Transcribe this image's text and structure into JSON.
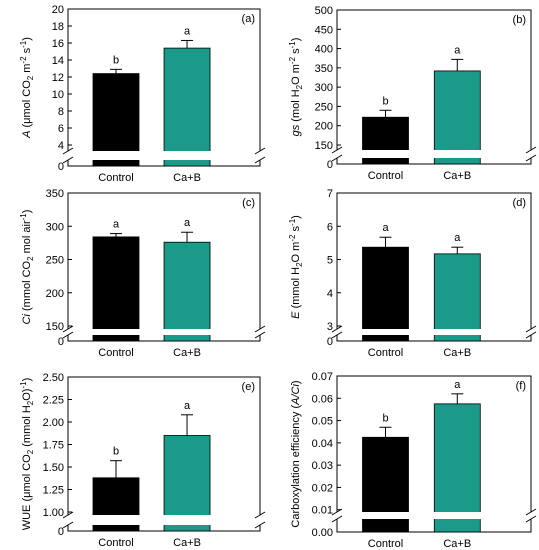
{
  "colors": {
    "control": "#000000",
    "treatment": "#1a9a89",
    "break": "#ffffff"
  },
  "chart_data": [
    {
      "type": "bar",
      "panel_label": "(a)",
      "categories": [
        "Control",
        "Ca+B"
      ],
      "values": [
        12.4,
        15.4
      ],
      "errors": [
        0.5,
        0.9
      ],
      "letters": [
        "b",
        "a"
      ],
      "ylabel_parts": [
        {
          "t": "A",
          "italic": true
        },
        {
          "t": " (μmol CO"
        },
        {
          "t": "2",
          "sub": true
        },
        {
          "t": " m"
        },
        {
          "t": "-2",
          "sup": true
        },
        {
          "t": " s"
        },
        {
          "t": "-1",
          "sup": true
        },
        {
          "t": ")"
        }
      ],
      "ylim_upper": [
        4,
        20
      ],
      "ticks_upper": [
        "4",
        "6",
        "8",
        "10",
        "12",
        "14",
        "16",
        "18",
        "20"
      ],
      "tick_values_upper": [
        4,
        6,
        8,
        10,
        12,
        14,
        16,
        18,
        20
      ],
      "tick_lower": "0",
      "axis_break": true
    },
    {
      "type": "bar",
      "panel_label": "(b)",
      "categories": [
        "Control",
        "Ca+B"
      ],
      "values": [
        222,
        342
      ],
      "errors": [
        18,
        30
      ],
      "letters": [
        "b",
        "a"
      ],
      "ylabel_parts": [
        {
          "t": "gs",
          "italic": true
        },
        {
          "t": " (mol H"
        },
        {
          "t": "2",
          "sub": true
        },
        {
          "t": "O m"
        },
        {
          "t": "-2",
          "sup": true
        },
        {
          "t": " s"
        },
        {
          "t": "-1",
          "sup": true
        },
        {
          "t": ")"
        }
      ],
      "ylim_upper": [
        150,
        500
      ],
      "ticks_upper": [
        "150",
        "200",
        "250",
        "300",
        "350",
        "400",
        "450",
        "500"
      ],
      "tick_values_upper": [
        150,
        200,
        250,
        300,
        350,
        400,
        450,
        500
      ],
      "tick_lower": "0",
      "axis_break": true
    },
    {
      "type": "bar",
      "panel_label": "(c)",
      "categories": [
        "Control",
        "Ca+B"
      ],
      "values": [
        284,
        276
      ],
      "errors": [
        5,
        15
      ],
      "letters": [
        "a",
        "a"
      ],
      "ylabel_parts": [
        {
          "t": "Ci",
          "italic": true
        },
        {
          "t": " (mmol CO"
        },
        {
          "t": "2",
          "sub": true
        },
        {
          "t": " mol air"
        },
        {
          "t": "-1",
          "sup": true
        },
        {
          "t": ")"
        }
      ],
      "ylim_upper": [
        150,
        350
      ],
      "ticks_upper": [
        "150",
        "200",
        "250",
        "300",
        "350"
      ],
      "tick_values_upper": [
        150,
        200,
        250,
        300,
        350
      ],
      "tick_lower": "0",
      "axis_break": true
    },
    {
      "type": "bar",
      "panel_label": "(d)",
      "categories": [
        "Control",
        "Ca+B"
      ],
      "values": [
        5.37,
        5.17
      ],
      "errors": [
        0.3,
        0.2
      ],
      "letters": [
        "a",
        "a"
      ],
      "ylabel_parts": [
        {
          "t": "E",
          "italic": true
        },
        {
          "t": " (mmol H"
        },
        {
          "t": "2",
          "sub": true
        },
        {
          "t": "O m"
        },
        {
          "t": "-2",
          "sup": true
        },
        {
          "t": " s"
        },
        {
          "t": "-1",
          "sup": true
        },
        {
          "t": ")"
        }
      ],
      "ylim_upper": [
        3,
        7
      ],
      "ticks_upper": [
        "3",
        "4",
        "5",
        "6",
        "7"
      ],
      "tick_values_upper": [
        3,
        4,
        5,
        6,
        7
      ],
      "tick_lower": "0",
      "axis_break": true
    },
    {
      "type": "bar",
      "panel_label": "(e)",
      "categories": [
        "Control",
        "Ca+B"
      ],
      "values": [
        1.38,
        1.85
      ],
      "errors": [
        0.19,
        0.23
      ],
      "letters": [
        "b",
        "a"
      ],
      "ylabel_parts": [
        {
          "t": "WUE (μmol CO"
        },
        {
          "t": "2",
          "sub": true
        },
        {
          "t": " (mmol H"
        },
        {
          "t": "2",
          "sub": true
        },
        {
          "t": "O)"
        },
        {
          "t": "-1",
          "sup": true
        },
        {
          "t": ")"
        }
      ],
      "ylim_upper": [
        1.0,
        2.5
      ],
      "ticks_upper": [
        "1.00",
        "1.25",
        "1.50",
        "1.75",
        "2.00",
        "2.25",
        "2.50"
      ],
      "tick_values_upper": [
        1.0,
        1.25,
        1.5,
        1.75,
        2.0,
        2.25,
        2.5
      ],
      "tick_lower": "0",
      "axis_break": true
    },
    {
      "type": "bar",
      "panel_label": "(f)",
      "categories": [
        "Control",
        "Ca+B"
      ],
      "values": [
        0.0425,
        0.0575
      ],
      "errors": [
        0.0045,
        0.0045
      ],
      "letters": [
        "b",
        "a"
      ],
      "ylabel_parts": [
        {
          "t": "Carboxylation efficiency ("
        },
        {
          "t": "A/Ci",
          "italic": true
        },
        {
          "t": ")"
        }
      ],
      "ylim": [
        0,
        0.07
      ],
      "ticks": [
        "0.00",
        "0.01",
        "0.02",
        "0.03",
        "0.04",
        "0.05",
        "0.06",
        "0.07"
      ],
      "tick_values": [
        0,
        0.01,
        0.02,
        0.03,
        0.04,
        0.05,
        0.06,
        0.07
      ],
      "axis_break": true,
      "break_marks": true
    }
  ]
}
